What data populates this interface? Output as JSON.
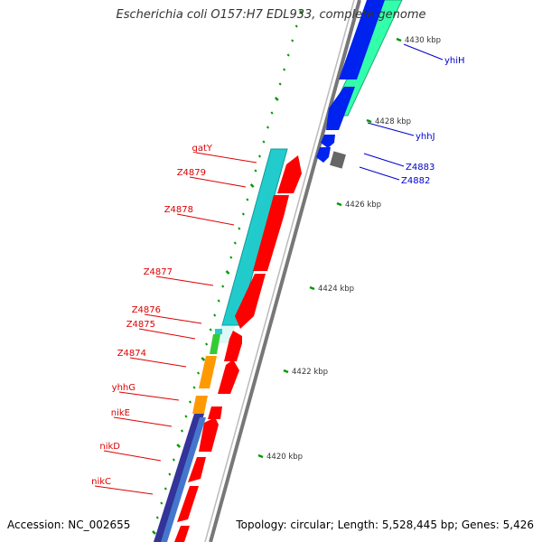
{
  "title": "Escherichia coli O157:H7 EDL933, complete genome",
  "accession": "Accession: NC_002655",
  "topology": "Topology: circular; Length: 5,528,445 bp; Genes: 5,426",
  "colors": {
    "reverse_label": "#dd0000",
    "forward_label": "#0000cc",
    "backbone": "#888888",
    "tick": "#009900",
    "reverse_cds": "#ff0000",
    "forward_cds": "#0022ee",
    "forward_gene": "#33ffaa",
    "reverse_gene": "#22cccc",
    "operon_orange": "#ff9900",
    "operon_navy": "#333399",
    "small_green": "#33cc33",
    "trna_gray": "#666666"
  },
  "kbp_labels": [
    "4420 kbp",
    "4422 kbp",
    "4424 kbp",
    "4426 kbp",
    "4428 kbp",
    "4430 kbp"
  ],
  "reverse_genes": [
    "gatY",
    "Z4879",
    "Z4878",
    "Z4877",
    "Z4876",
    "Z4875",
    "Z4874",
    "yhhG",
    "nikE",
    "nikD",
    "nikC"
  ],
  "forward_genes": [
    "yhiH",
    "yhhJ",
    "Z4883",
    "Z4882"
  ]
}
